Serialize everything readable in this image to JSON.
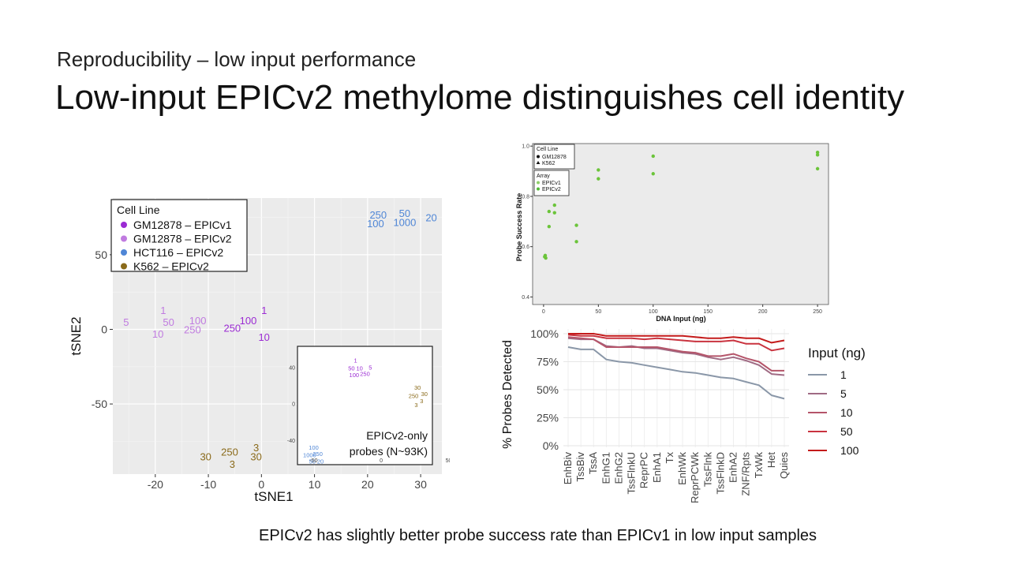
{
  "slide": {
    "subtitle": "Reproducibility – low input performance",
    "title": "Low-input EPICv2 methylome distinguishes cell identity",
    "caption": "EPICv2 has slightly better probe success rate than EPICv1 in low input samples"
  },
  "colors": {
    "gm_v1": "#9b2bd3",
    "gm_v2": "#c07be0",
    "hct": "#4f86d6",
    "k562": "#8a6a1a",
    "green": "#6bc43a",
    "panel_bg": "#ebebeb"
  },
  "chart_data": [
    {
      "type": "scatter",
      "id": "tsne",
      "xlabel": "tSNE1",
      "ylabel": "tSNE2",
      "xlim": [
        -28,
        34
      ],
      "ylim": [
        -97,
        88
      ],
      "xticks": [
        -20,
        -10,
        0,
        10,
        20,
        30
      ],
      "yticks": [
        -50,
        0,
        50
      ],
      "legend_title": "Cell Line",
      "legend_position": "top-left",
      "series": [
        {
          "name": "GM12878 – EPICv1",
          "color": "#9b2bd3",
          "points": [
            {
              "x": 0.5,
              "y": 13,
              "label": "1"
            },
            {
              "x": -2.5,
              "y": 6,
              "label": "100"
            },
            {
              "x": -5.5,
              "y": 1,
              "label": "250"
            },
            {
              "x": 0.5,
              "y": -5,
              "label": "10"
            }
          ]
        },
        {
          "name": "GM12878 – EPICv2",
          "color": "#c07be0",
          "points": [
            {
              "x": -18.5,
              "y": 13,
              "label": "1"
            },
            {
              "x": -17.5,
              "y": 5,
              "label": "50"
            },
            {
              "x": -12,
              "y": 6,
              "label": "100"
            },
            {
              "x": -13,
              "y": 0,
              "label": "250"
            },
            {
              "x": -19.5,
              "y": -3,
              "label": "10"
            },
            {
              "x": -25.5,
              "y": 5,
              "label": "5"
            }
          ]
        },
        {
          "name": "HCT116 – EPICv2",
          "color": "#4f86d6",
          "points": [
            {
              "x": 22,
              "y": 77,
              "label": "250"
            },
            {
              "x": 27,
              "y": 78,
              "label": "50"
            },
            {
              "x": 21.5,
              "y": 71,
              "label": "100"
            },
            {
              "x": 27,
              "y": 72,
              "label": "1000"
            },
            {
              "x": 32,
              "y": 75,
              "label": "20"
            }
          ]
        },
        {
          "name": "K562 – EPICv2",
          "color": "#8a6a1a",
          "points": [
            {
              "x": -6,
              "y": -82,
              "label": "250"
            },
            {
              "x": -1,
              "y": -79,
              "label": "3"
            },
            {
              "x": -10.5,
              "y": -85,
              "label": "30"
            },
            {
              "x": -1,
              "y": -85,
              "label": "30"
            },
            {
              "x": -5.5,
              "y": -90,
              "label": "3"
            }
          ]
        }
      ]
    },
    {
      "type": "scatter",
      "id": "tsne-inset",
      "note": "EPICv2-only probes (N~93K)",
      "xlim": [
        -62,
        38
      ],
      "ylim": [
        -67,
        63
      ],
      "xticks": [
        -50,
        0,
        50
      ],
      "yticks": [
        -40,
        0,
        40
      ],
      "series": [
        {
          "name": "GM12878",
          "color": "#9b2bd3",
          "points": [
            {
              "x": -19,
              "y": 48,
              "label": "1"
            },
            {
              "x": -22,
              "y": 39,
              "label": "50"
            },
            {
              "x": -16,
              "y": 39,
              "label": "10"
            },
            {
              "x": -8,
              "y": 40,
              "label": "5"
            },
            {
              "x": -20,
              "y": 32,
              "label": "100"
            },
            {
              "x": -12,
              "y": 33,
              "label": "250"
            }
          ]
        },
        {
          "name": "K562",
          "color": "#8a6a1a",
          "points": [
            {
              "x": 27,
              "y": 18,
              "label": "30"
            },
            {
              "x": 24,
              "y": 9,
              "label": "250"
            },
            {
              "x": 32,
              "y": 11,
              "label": "30"
            },
            {
              "x": 30,
              "y": 3,
              "label": "3"
            },
            {
              "x": 26,
              "y": -1,
              "label": "3"
            }
          ]
        },
        {
          "name": "HCT116",
          "color": "#4f86d6",
          "points": [
            {
              "x": -50,
              "y": -48,
              "label": "100"
            },
            {
              "x": -53,
              "y": -56,
              "label": "1000"
            },
            {
              "x": -47,
              "y": -55,
              "label": "250"
            },
            {
              "x": -51,
              "y": -63,
              "label": "50"
            },
            {
              "x": -45,
              "y": -63,
              "label": "20"
            }
          ]
        }
      ]
    },
    {
      "type": "scatter",
      "id": "probe-success",
      "xlabel": "DNA Input (ng)",
      "ylabel": "Probe Success Rate",
      "xlim": [
        -10,
        260
      ],
      "ylim": [
        0.37,
        1.01
      ],
      "xticks": [
        0,
        50,
        100,
        150,
        200,
        250
      ],
      "yticks": [
        0.4,
        0.6,
        0.8,
        1.0
      ],
      "ytick_labels": [
        "0.4",
        "0.6",
        "0.8",
        "1.0"
      ],
      "legend_position": "top-left",
      "legend": {
        "cell_title": "Cell Line",
        "cell_items": [
          {
            "label": "GM12878",
            "shape": "circle"
          },
          {
            "label": "K562",
            "shape": "triangle"
          }
        ],
        "array_title": "Array",
        "array_items": [
          {
            "label": "EPICv1",
            "color": "#8fcf6a"
          },
          {
            "label": "EPICv2",
            "color": "#52b936"
          }
        ]
      },
      "points": [
        {
          "x": 1,
          "y": 0.56
        },
        {
          "x": 2,
          "y": 0.555
        },
        {
          "x": 1.5,
          "y": 0.565
        },
        {
          "x": 5,
          "y": 0.68
        },
        {
          "x": 5,
          "y": 0.74
        },
        {
          "x": 10,
          "y": 0.735
        },
        {
          "x": 10,
          "y": 0.765
        },
        {
          "x": 30,
          "y": 0.62
        },
        {
          "x": 30,
          "y": 0.685
        },
        {
          "x": 50,
          "y": 0.87
        },
        {
          "x": 50,
          "y": 0.905
        },
        {
          "x": 100,
          "y": 0.89
        },
        {
          "x": 100,
          "y": 0.96
        },
        {
          "x": 250,
          "y": 0.91
        },
        {
          "x": 250,
          "y": 0.965
        },
        {
          "x": 250,
          "y": 0.975
        }
      ]
    },
    {
      "type": "line",
      "id": "probes-detected",
      "ylabel": "% Probes Detected",
      "ylim": [
        0,
        100
      ],
      "yticks": [
        0,
        25,
        50,
        75,
        100
      ],
      "ytick_labels": [
        "0%",
        "25%",
        "50%",
        "75%",
        "100%"
      ],
      "categories": [
        "EnhBiv",
        "TssBiv",
        "TssA",
        "EnhG1",
        "EnhG2",
        "TssFlnkU",
        "ReprPC",
        "EnhA1",
        "Tx",
        "EnhWk",
        "ReprPCWk",
        "TssFlnk",
        "TssFlnkD",
        "EnhA2",
        "ZNF/Rpts",
        "TxWk",
        "Het",
        "Quies"
      ],
      "legend_title": "Input (ng)",
      "series": [
        {
          "name": "1",
          "color": "#8a97a8",
          "values": [
            88,
            86,
            86,
            77,
            75,
            74,
            72,
            70,
            68,
            66,
            65,
            63,
            61,
            60,
            57,
            54,
            45,
            42
          ]
        },
        {
          "name": "5",
          "color": "#a06b84",
          "values": [
            96,
            95,
            95,
            89,
            88,
            89,
            87,
            87,
            85,
            83,
            82,
            79,
            77,
            79,
            76,
            72,
            64,
            63
          ]
        },
        {
          "name": "10",
          "color": "#b5556a",
          "values": [
            97,
            96,
            95,
            88,
            88,
            88,
            88,
            88,
            86,
            84,
            83,
            80,
            80,
            82,
            78,
            75,
            67,
            67
          ]
        },
        {
          "name": "50",
          "color": "#c9333f",
          "values": [
            99,
            98,
            98,
            96,
            96,
            96,
            95,
            96,
            95,
            94,
            93,
            93,
            93,
            94,
            91,
            91,
            85,
            87
          ]
        },
        {
          "name": "100",
          "color": "#c41b1b",
          "values": [
            100,
            100,
            100,
            98,
            98,
            98,
            98,
            98,
            98,
            98,
            97,
            96,
            96,
            97,
            96,
            96,
            92,
            94
          ]
        }
      ]
    }
  ]
}
